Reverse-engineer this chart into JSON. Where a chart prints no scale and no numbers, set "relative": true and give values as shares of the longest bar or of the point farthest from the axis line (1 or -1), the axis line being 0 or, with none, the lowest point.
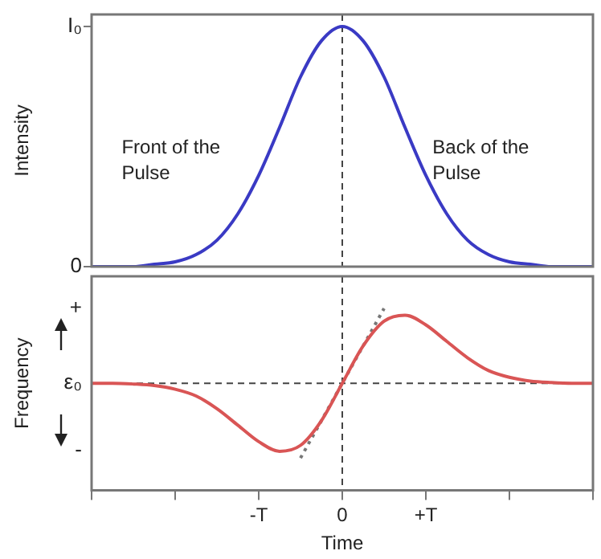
{
  "chart_data": [
    {
      "type": "line",
      "relative": true,
      "ylabel": "Intensity",
      "categories": [
        null,
        null,
        null,
        null,
        null,
        null,
        null,
        null,
        null,
        null,
        null,
        null,
        null,
        null,
        null,
        null,
        null,
        null,
        null,
        null,
        null,
        null,
        null,
        null,
        null
      ],
      "series": [
        {
          "color": "#3a3ac4",
          "values": [
            0,
            0,
            0,
            0.01,
            0.02,
            0.05,
            0.11,
            0.22,
            0.38,
            0.58,
            0.79,
            0.94,
            1,
            0.94,
            0.79,
            0.58,
            0.38,
            0.22,
            0.11,
            0.05,
            0.02,
            0.01,
            0,
            0,
            0
          ]
        }
      ],
      "marker": "none",
      "line_style": "solid",
      "grid": false,
      "legend": false,
      "ref_lines": [
        {
          "axis": "x",
          "value": "0",
          "line_style": "dashed",
          "color": "#444444"
        }
      ],
      "annotations": [
        "Front of the Pulse",
        "Back of the Pulse",
        "I₀",
        "0"
      ]
    },
    {
      "type": "line",
      "relative": true,
      "xlabel": "Time",
      "ylabel": "Frequency",
      "categories": [
        null,
        null,
        null,
        null,
        null,
        null,
        null,
        null,
        "-T",
        null,
        null,
        null,
        "0",
        null,
        null,
        null,
        "+T",
        null,
        null,
        null,
        null,
        null,
        null,
        null,
        null
      ],
      "series": [
        {
          "color": "#d95555",
          "values": [
            0,
            0,
            -0.01,
            -0.03,
            -0.08,
            -0.17,
            -0.34,
            -0.56,
            -0.78,
            -0.91,
            -0.83,
            -0.5,
            0,
            0.5,
            0.83,
            0.91,
            0.78,
            0.56,
            0.34,
            0.17,
            0.08,
            0.03,
            0.01,
            0,
            0
          ]
        },
        {
          "color": "#777777",
          "line_style": "dotted",
          "values": [
            null,
            null,
            null,
            null,
            null,
            null,
            null,
            null,
            null,
            null,
            -1,
            -0.5,
            0,
            0.5,
            1,
            null,
            null,
            null,
            null,
            null,
            null,
            null,
            null,
            null,
            null
          ]
        }
      ],
      "marker": "none",
      "line_style": "solid",
      "grid": false,
      "legend": false,
      "ref_lines": [
        {
          "axis": "x",
          "value": "0",
          "line_style": "dashed",
          "color": "#444444"
        },
        {
          "axis": "y",
          "value": 0,
          "line_style": "dashed",
          "color": "#444444"
        }
      ],
      "annotations": [
        "ε₀",
        "+",
        "-"
      ]
    }
  ]
}
